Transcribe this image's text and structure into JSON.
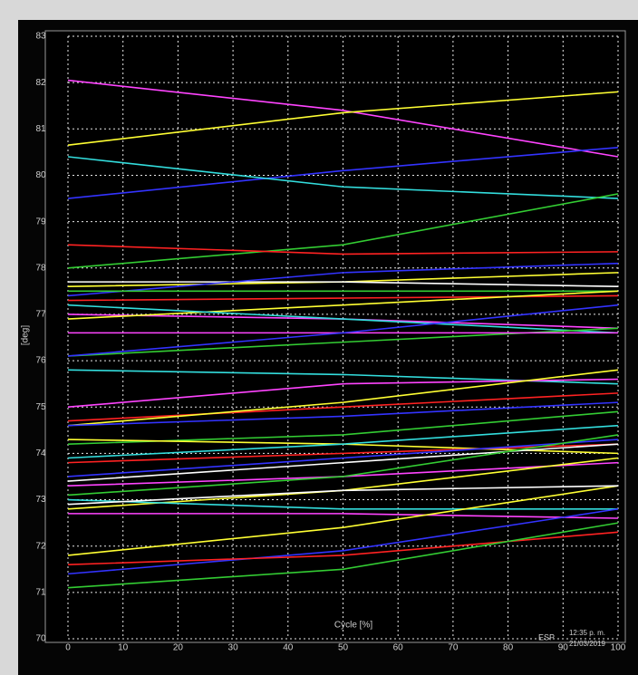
{
  "chart_data": {
    "type": "line",
    "xlabel": "Cycle [%]",
    "ylabel": "[deg]",
    "x": [
      0,
      50,
      100
    ],
    "xlim": [
      0,
      100
    ],
    "xticks": [
      0,
      10,
      20,
      30,
      40,
      50,
      60,
      70,
      80,
      90,
      100
    ],
    "ylim": [
      70,
      83
    ],
    "yticks": [
      70,
      71,
      72,
      73,
      74,
      75,
      76,
      77,
      78,
      79,
      80,
      81,
      82,
      83
    ],
    "grid": true,
    "series": [
      {
        "color": "#ff44ff",
        "values": [
          82.05,
          81.4,
          80.4
        ]
      },
      {
        "color": "#ffff33",
        "values": [
          80.65,
          81.35,
          81.8
        ]
      },
      {
        "color": "#3333ff",
        "values": [
          79.5,
          80.1,
          80.6
        ]
      },
      {
        "color": "#33dddd",
        "values": [
          80.4,
          79.75,
          79.5
        ]
      },
      {
        "color": "#33cc33",
        "values": [
          78.0,
          78.5,
          79.6
        ]
      },
      {
        "color": "#ff2222",
        "values": [
          78.5,
          78.3,
          78.35
        ]
      },
      {
        "color": "#ffff33",
        "values": [
          77.6,
          77.7,
          77.9
        ]
      },
      {
        "color": "#ffffff",
        "values": [
          77.7,
          77.7,
          77.6
        ]
      },
      {
        "color": "#3333ff",
        "values": [
          77.4,
          77.9,
          78.1
        ]
      },
      {
        "color": "#33cc33",
        "values": [
          77.5,
          77.5,
          77.5
        ]
      },
      {
        "color": "#ff2222",
        "values": [
          77.3,
          77.35,
          77.4
        ]
      },
      {
        "color": "#ff44ff",
        "values": [
          77.0,
          76.9,
          76.7
        ]
      },
      {
        "color": "#ffff33",
        "values": [
          76.9,
          77.2,
          77.5
        ]
      },
      {
        "color": "#33dddd",
        "values": [
          77.2,
          76.9,
          76.6
        ]
      },
      {
        "color": "#33cc33",
        "values": [
          76.1,
          76.4,
          76.7
        ]
      },
      {
        "color": "#ff44ff",
        "values": [
          76.6,
          76.6,
          76.6
        ]
      },
      {
        "color": "#3333ff",
        "values": [
          76.1,
          76.6,
          77.2
        ]
      },
      {
        "color": "#33dddd",
        "values": [
          75.8,
          75.7,
          75.5
        ]
      },
      {
        "color": "#ff44ff",
        "values": [
          75.0,
          75.5,
          75.6
        ]
      },
      {
        "color": "#ff2222",
        "values": [
          74.7,
          75.0,
          75.3
        ]
      },
      {
        "color": "#ffff33",
        "values": [
          74.6,
          75.1,
          75.8
        ]
      },
      {
        "color": "#3333ff",
        "values": [
          74.6,
          74.8,
          75.1
        ]
      },
      {
        "color": "#33cc33",
        "values": [
          74.2,
          74.4,
          74.9
        ]
      },
      {
        "color": "#ffff33",
        "values": [
          74.3,
          74.2,
          74.0
        ]
      },
      {
        "color": "#33dddd",
        "values": [
          73.9,
          74.2,
          74.6
        ]
      },
      {
        "color": "#ff2222",
        "values": [
          73.8,
          74.0,
          74.2
        ]
      },
      {
        "color": "#3333ff",
        "values": [
          73.5,
          73.9,
          74.3
        ]
      },
      {
        "color": "#ffffff",
        "values": [
          73.4,
          73.8,
          74.2
        ]
      },
      {
        "color": "#ff44ff",
        "values": [
          73.3,
          73.5,
          73.8
        ]
      },
      {
        "color": "#33cc33",
        "values": [
          73.1,
          73.5,
          74.4
        ]
      },
      {
        "color": "#ffff33",
        "values": [
          72.8,
          73.2,
          73.9
        ]
      },
      {
        "color": "#ff44ff",
        "values": [
          72.7,
          72.7,
          72.6
        ]
      },
      {
        "color": "#33dddd",
        "values": [
          73.0,
          72.8,
          72.8
        ]
      },
      {
        "color": "#ffff33",
        "values": [
          71.8,
          72.4,
          73.3
        ]
      },
      {
        "color": "#3333ff",
        "values": [
          71.4,
          71.9,
          72.8
        ]
      },
      {
        "color": "#ff2222",
        "values": [
          71.6,
          71.8,
          72.3
        ]
      },
      {
        "color": "#33cc33",
        "values": [
          71.1,
          71.5,
          72.5
        ]
      },
      {
        "color": "#ffffff",
        "values": [
          72.9,
          73.2,
          73.3
        ]
      }
    ]
  },
  "taskbar": {
    "language": "ESP",
    "time": "12:35 p. m.",
    "date": "21/03/2019"
  }
}
